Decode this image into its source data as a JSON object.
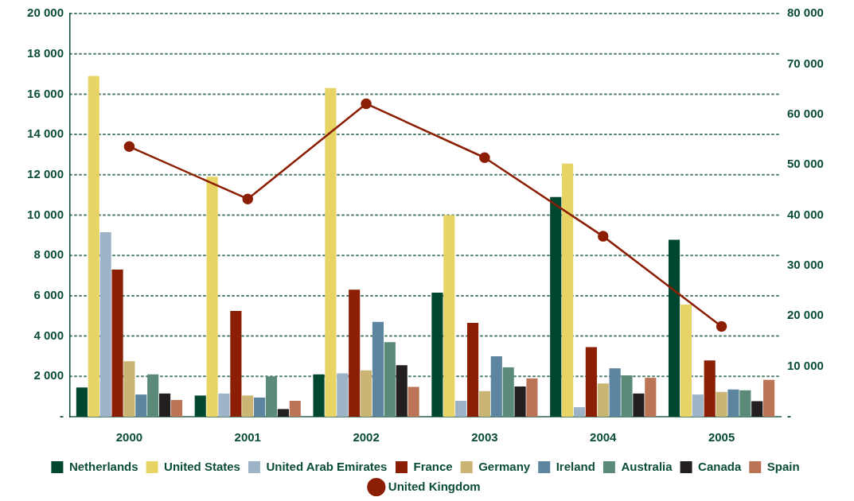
{
  "chart_data": {
    "type": "bar",
    "categories": [
      "2000",
      "2001",
      "2002",
      "2003",
      "2004",
      "2005"
    ],
    "series": [
      {
        "name": "Netherlands",
        "color": "#004730",
        "values": [
          1450,
          1050,
          2100,
          6150,
          10900,
          8780
        ]
      },
      {
        "name": "United States",
        "color": "#e8d464",
        "values": [
          16900,
          11900,
          16300,
          10000,
          12550,
          5560
        ]
      },
      {
        "name": "United Arab Emirates",
        "color": "#9db3c8",
        "values": [
          9150,
          1150,
          2150,
          790,
          470,
          1100
        ]
      },
      {
        "name": "France",
        "color": "#8b1e03",
        "values": [
          7300,
          5250,
          6300,
          4650,
          3450,
          2790
        ]
      },
      {
        "name": "Germany",
        "color": "#cbb574",
        "values": [
          2750,
          1050,
          2300,
          1270,
          1650,
          1230
        ]
      },
      {
        "name": "Ireland",
        "color": "#5e85a0",
        "values": [
          1100,
          950,
          4700,
          3000,
          2400,
          1350
        ]
      },
      {
        "name": "Australia",
        "color": "#5b8b78",
        "values": [
          2100,
          2000,
          3700,
          2450,
          2050,
          1310
        ]
      },
      {
        "name": "Canada",
        "color": "#231f20",
        "values": [
          1150,
          380,
          2550,
          1500,
          1150,
          770
        ]
      },
      {
        "name": "Spain",
        "color": "#bb7456",
        "values": [
          830,
          790,
          1480,
          1900,
          1930,
          1830
        ]
      },
      {
        "name": "United Kingdom",
        "color": "#8b1e03",
        "type": "line",
        "axis": "y2",
        "marker": "circle",
        "values": [
          53600,
          43200,
          62100,
          51400,
          35800,
          17900
        ]
      }
    ],
    "ylim": [
      0,
      20000
    ],
    "yticks": [
      {
        "value": 0,
        "label": "-"
      },
      {
        "value": 2000,
        "label": "2 000"
      },
      {
        "value": 4000,
        "label": "4 000"
      },
      {
        "value": 6000,
        "label": "6 000"
      },
      {
        "value": 8000,
        "label": "8 000"
      },
      {
        "value": 10000,
        "label": "10 000"
      },
      {
        "value": 12000,
        "label": "12 000"
      },
      {
        "value": 14000,
        "label": "14 000"
      },
      {
        "value": 16000,
        "label": "16 000"
      },
      {
        "value": 18000,
        "label": "18 000"
      },
      {
        "value": 20000,
        "label": "20 000"
      }
    ],
    "y2lim": [
      0,
      80000
    ],
    "y2ticks": [
      {
        "value": 0,
        "label": "-"
      },
      {
        "value": 10000,
        "label": "10 000"
      },
      {
        "value": 20000,
        "label": "20 000"
      },
      {
        "value": 30000,
        "label": "30 000"
      },
      {
        "value": 40000,
        "label": "40 000"
      },
      {
        "value": 50000,
        "label": "50 000"
      },
      {
        "value": 60000,
        "label": "60 000"
      },
      {
        "value": 70000,
        "label": "70 000"
      },
      {
        "value": 80000,
        "label": "80 000"
      }
    ],
    "grid": "y",
    "legend": "bottom",
    "line_style": "solid"
  }
}
